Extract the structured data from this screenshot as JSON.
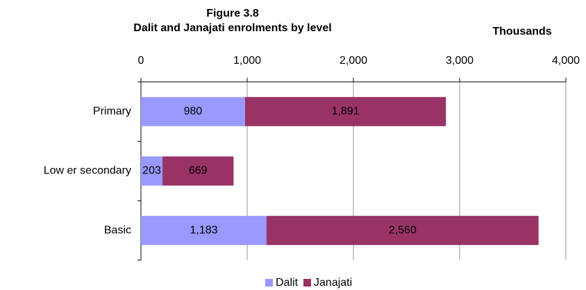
{
  "chart_data": {
    "type": "stacked-bar-horizontal",
    "title": "Figure 3.8",
    "subtitle": "Dalit and Janajati enrolments by level",
    "axis_label": "Thousands",
    "categories": [
      "Primary",
      "Low er secondary",
      "Basic"
    ],
    "series": [
      {
        "name": "Dalit",
        "color": "#9999ff",
        "values": [
          980,
          203,
          1183
        ],
        "value_labels": [
          "980",
          "203",
          "1,183"
        ]
      },
      {
        "name": "Janajati",
        "color": "#993366",
        "values": [
          1891,
          669,
          2560
        ],
        "value_labels": [
          "1,891",
          "669",
          "2,560"
        ]
      }
    ],
    "xlim": [
      0,
      4000
    ],
    "xticks": [
      0,
      {
        "value": 1000,
        "label": "1,000"
      },
      {
        "value": 2000,
        "label": "2,000"
      },
      {
        "value": 3000,
        "label": "3,000"
      },
      {
        "value": 4000,
        "label": "4,000"
      }
    ],
    "grid": true,
    "legend": "bottom"
  }
}
